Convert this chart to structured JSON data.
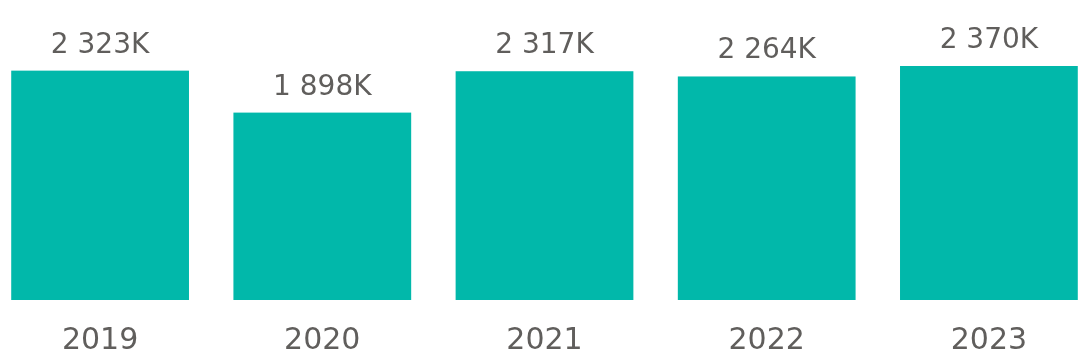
{
  "chart_data": {
    "type": "bar",
    "categories": [
      "2019",
      "2020",
      "2021",
      "2022",
      "2023"
    ],
    "values": [
      2323,
      1898,
      2317,
      2264,
      2370
    ],
    "value_labels": [
      "2 323K",
      "1 898K",
      "2 317K",
      "2 264K",
      "2 370K"
    ],
    "color": "#01b8aa"
  }
}
